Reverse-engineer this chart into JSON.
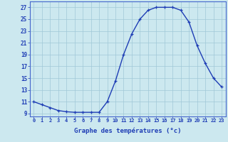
{
  "hours": [
    0,
    1,
    2,
    3,
    4,
    5,
    6,
    7,
    8,
    9,
    10,
    11,
    12,
    13,
    14,
    15,
    16,
    17,
    18,
    19,
    20,
    21,
    22,
    23
  ],
  "temps": [
    11,
    10.5,
    10,
    9.5,
    9.3,
    9.2,
    9.2,
    9.2,
    9.2,
    11,
    14.5,
    19,
    22.5,
    25,
    26.5,
    27,
    27,
    27,
    26.5,
    24.5,
    20.5,
    17.5,
    15,
    13.5
  ],
  "line_color": "#1e3db5",
  "marker": "+",
  "bg_color": "#cce8ef",
  "grid_color": "#a0c8d8",
  "xlabel": "Graphe des températures (°c)",
  "xlabel_color": "#1e3db5",
  "xlim_min": -0.5,
  "xlim_max": 23.5,
  "ylim_min": 8.5,
  "ylim_max": 28,
  "yticks": [
    9,
    11,
    13,
    15,
    17,
    19,
    21,
    23,
    25,
    27
  ],
  "xtick_labels": [
    "0",
    "1",
    "2",
    "3",
    "4",
    "5",
    "6",
    "7",
    "8",
    "9",
    "10",
    "11",
    "12",
    "13",
    "14",
    "15",
    "16",
    "17",
    "18",
    "19",
    "20",
    "21",
    "22",
    "23"
  ],
  "tick_color": "#1e3db5",
  "spine_color": "#4466cc",
  "marker_size": 3.5,
  "linewidth": 1.0,
  "xtick_fontsize": 5.0,
  "ytick_fontsize": 5.5,
  "xlabel_fontsize": 6.5
}
